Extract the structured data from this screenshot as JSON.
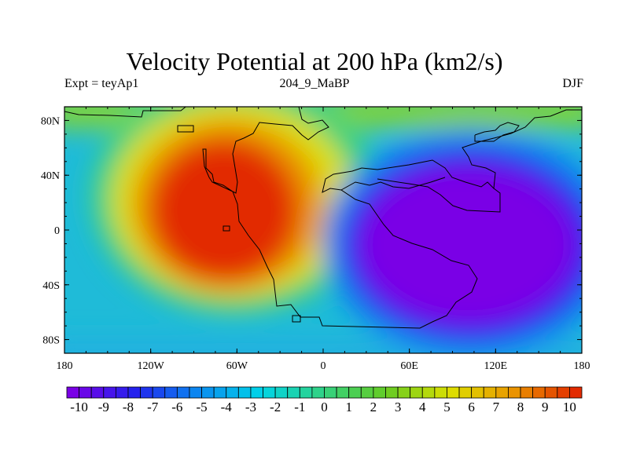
{
  "title": "Velocity Potential at 200 hPa (km2/s)",
  "subtitle_left": "Expt = teyAp1",
  "subtitle_center": "204_9_MaBP",
  "subtitle_right": "DJF",
  "map": {
    "projection": "cylindrical-equidistant",
    "lon_range": [
      -180,
      180
    ],
    "lat_range": [
      -90,
      90
    ],
    "lon_ticks": [
      {
        "value": -180,
        "label": "180"
      },
      {
        "value": -120,
        "label": "120W"
      },
      {
        "value": -60,
        "label": "60W"
      },
      {
        "value": 0,
        "label": "0"
      },
      {
        "value": 60,
        "label": "60E"
      },
      {
        "value": 120,
        "label": "120E"
      },
      {
        "value": 180,
        "label": "180"
      }
    ],
    "lat_ticks": [
      {
        "value": 80,
        "label": "80N"
      },
      {
        "value": 40,
        "label": "40N"
      },
      {
        "value": 0,
        "label": "0"
      },
      {
        "value": -40,
        "label": "40S"
      },
      {
        "value": -80,
        "label": "80S"
      }
    ],
    "field": {
      "name": "velocity potential",
      "units": "km2/s",
      "maximum": {
        "value": 10,
        "lon": -85,
        "lat": 15
      },
      "minimum": {
        "value": -10,
        "lon": 105,
        "lat": 0
      }
    }
  },
  "colorbar": {
    "min": -10.5,
    "max": 10.5,
    "step": 0.5,
    "labels": [
      "-10",
      "-9",
      "-8",
      "-7",
      "-6",
      "-5",
      "-4",
      "-3",
      "-2",
      "-1",
      "0",
      "1",
      "2",
      "3",
      "4",
      "5",
      "6",
      "7",
      "8",
      "9",
      "10"
    ],
    "color_stops": [
      "#7a00e6",
      "#2222ee",
      "#0a8af0",
      "#00d4e8",
      "#33d280",
      "#66cc22",
      "#dde000",
      "#ea9600",
      "#e22a00"
    ]
  }
}
